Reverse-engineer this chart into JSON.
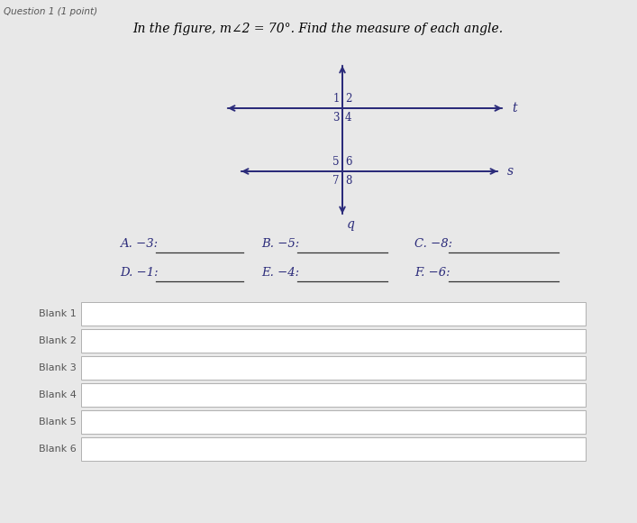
{
  "question_label": "Question 1 (1 point)",
  "header_text": "In the figure, m∠2 = 70°. Find the measure of each angle.",
  "label_t": "t",
  "label_s": "s",
  "label_q": "q",
  "angle_labels_inter1": [
    "1",
    "2",
    "3",
    "4"
  ],
  "angle_labels_inter2": [
    "5",
    "6",
    "7",
    "8"
  ],
  "questions_row1": [
    "A. −3:",
    "B. −5:",
    "C. −8:"
  ],
  "questions_row2": [
    "D. −1:",
    "E. −4:",
    "F. −6:"
  ],
  "blanks": [
    "Blank 1",
    "Blank 2",
    "Blank 3",
    "Blank 4",
    "Blank 5",
    "Blank 6"
  ],
  "bg_color": "#e8e8e8",
  "text_color": "#2b2b7a",
  "line_color": "#2b2b7a",
  "question_text_color": "#2b2b7a",
  "blank_label_color": "#555555",
  "white": "#ffffff",
  "border_color": "#b0b0b0",
  "header_color": "#000000"
}
